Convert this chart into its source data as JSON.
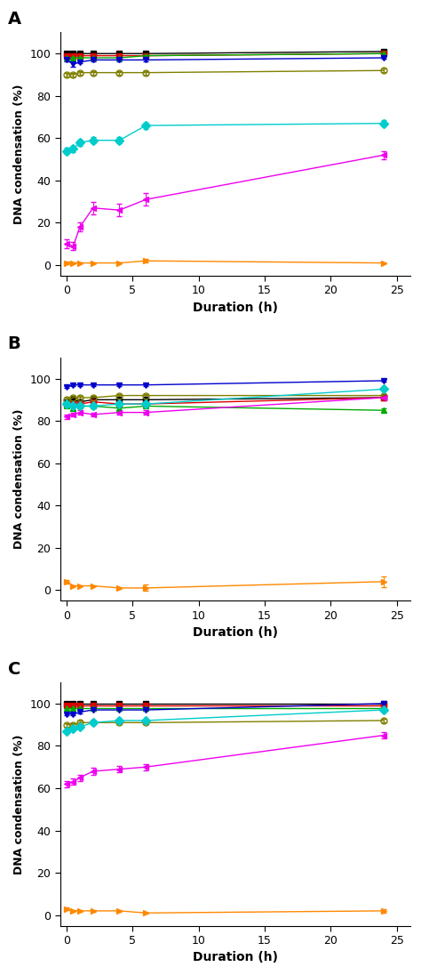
{
  "x_points": [
    0.0,
    0.5,
    1.0,
    2.0,
    4.0,
    6.0,
    24.0
  ],
  "panels": [
    "A",
    "B",
    "C"
  ],
  "series": [
    {
      "label": "black_sq",
      "color": "#000000",
      "marker": "s",
      "linestyle": "-",
      "A": [
        100,
        100,
        100,
        100,
        100,
        100,
        101
      ],
      "A_err": [
        0.3,
        0.3,
        0.3,
        0.3,
        0.3,
        0.3,
        0.3
      ],
      "B": [
        89,
        90,
        89,
        90,
        90,
        90,
        91
      ],
      "B_err": [
        0.8,
        0.8,
        0.8,
        0.8,
        0.8,
        0.8,
        0.8
      ],
      "C": [
        100,
        100,
        100,
        100,
        100,
        100,
        100
      ],
      "C_err": [
        0.3,
        0.3,
        0.3,
        0.3,
        0.3,
        0.3,
        0.3
      ]
    },
    {
      "label": "red_sq",
      "color": "#dd0000",
      "marker": "s",
      "linestyle": "-",
      "A": [
        99,
        99,
        99,
        99,
        99,
        99,
        100
      ],
      "A_err": [
        0.3,
        0.3,
        0.3,
        0.3,
        0.3,
        0.3,
        0.3
      ],
      "B": [
        88,
        88,
        88,
        89,
        88,
        88,
        91
      ],
      "B_err": [
        0.8,
        0.8,
        0.8,
        0.8,
        0.8,
        0.8,
        0.8
      ],
      "C": [
        99,
        99,
        99,
        99,
        99,
        99,
        99
      ],
      "C_err": [
        0.3,
        0.3,
        0.3,
        0.3,
        0.3,
        0.3,
        0.3
      ]
    },
    {
      "label": "green_tri_up",
      "color": "#00aa00",
      "marker": "^",
      "linestyle": "-",
      "A": [
        98,
        98,
        98,
        98,
        98,
        99,
        100
      ],
      "A_err": [
        0.3,
        0.3,
        0.3,
        0.3,
        0.3,
        0.3,
        0.3
      ],
      "B": [
        87,
        86,
        87,
        87,
        86,
        87,
        85
      ],
      "B_err": [
        0.8,
        0.8,
        0.8,
        0.8,
        0.8,
        0.8,
        0.8
      ],
      "C": [
        98,
        98,
        98,
        98,
        98,
        98,
        98
      ],
      "C_err": [
        0.3,
        0.3,
        0.3,
        0.3,
        0.3,
        0.3,
        0.3
      ]
    },
    {
      "label": "blue_tri_down",
      "color": "#0000cc",
      "marker": "v",
      "linestyle": "-",
      "A": [
        97,
        95,
        96,
        97,
        97,
        97,
        98
      ],
      "A_err": [
        0.5,
        1.0,
        0.5,
        0.5,
        0.5,
        0.5,
        0.5
      ],
      "B": [
        96,
        97,
        97,
        97,
        97,
        97,
        99
      ],
      "B_err": [
        0.5,
        0.5,
        0.5,
        0.5,
        0.5,
        0.5,
        0.5
      ],
      "C": [
        95,
        95,
        96,
        97,
        97,
        97,
        100
      ],
      "C_err": [
        0.5,
        0.5,
        0.5,
        0.5,
        0.5,
        0.5,
        0.5
      ]
    },
    {
      "label": "olive_circle",
      "color": "#808000",
      "marker": "o",
      "markerfacecolor": "none",
      "linestyle": "-",
      "A": [
        90,
        90,
        91,
        91,
        91,
        91,
        92
      ],
      "A_err": [
        0.8,
        0.8,
        0.8,
        0.8,
        0.8,
        0.8,
        0.8
      ],
      "B": [
        90,
        91,
        91,
        91,
        92,
        92,
        92
      ],
      "B_err": [
        0.8,
        0.8,
        0.8,
        0.8,
        0.8,
        0.8,
        0.8
      ],
      "C": [
        90,
        90,
        91,
        91,
        91,
        91,
        92
      ],
      "C_err": [
        0.8,
        0.8,
        0.8,
        0.8,
        0.8,
        0.8,
        0.8
      ]
    },
    {
      "label": "cyan_diamond",
      "color": "#00cccc",
      "marker": "D",
      "linestyle": "-",
      "A": [
        54,
        55,
        58,
        59,
        59,
        66,
        67
      ],
      "A_err": [
        1.5,
        1.5,
        1.5,
        1.5,
        1.5,
        1.5,
        1.5
      ],
      "B": [
        88,
        87,
        87,
        87,
        88,
        88,
        95
      ],
      "B_err": [
        0.8,
        0.8,
        0.8,
        0.8,
        0.8,
        0.8,
        0.8
      ],
      "C": [
        87,
        88,
        89,
        91,
        92,
        92,
        97
      ],
      "C_err": [
        0.8,
        0.8,
        0.8,
        0.8,
        0.8,
        0.8,
        0.8
      ]
    },
    {
      "label": "magenta_tri_left",
      "color": "#ee00ee",
      "marker": "<",
      "linestyle": "-",
      "A": [
        10,
        9,
        18,
        27,
        26,
        31,
        52
      ],
      "A_err": [
        2,
        2,
        2,
        3,
        3,
        3,
        2
      ],
      "B": [
        82,
        83,
        84,
        83,
        84,
        84,
        91
      ],
      "B_err": [
        1,
        1,
        1,
        1,
        1,
        1,
        1
      ],
      "C": [
        62,
        63,
        65,
        68,
        69,
        70,
        85
      ],
      "C_err": [
        1.5,
        1.5,
        1.5,
        1.5,
        1.5,
        1.5,
        1.5
      ]
    },
    {
      "label": "orange_tri_right",
      "color": "#ff8800",
      "marker": ">",
      "linestyle": "-",
      "A": [
        1,
        1,
        1,
        1,
        1,
        2,
        1
      ],
      "A_err": [
        0.8,
        0.3,
        0.3,
        0.3,
        0.3,
        0.8,
        0.3
      ],
      "B": [
        4,
        2,
        2,
        2,
        1,
        1,
        4
      ],
      "B_err": [
        0.8,
        0.3,
        0.3,
        0.3,
        0.3,
        1.5,
        2.5
      ],
      "C": [
        3,
        2,
        2,
        2,
        2,
        1,
        2
      ],
      "C_err": [
        0.8,
        0.3,
        0.3,
        0.3,
        0.3,
        0.3,
        0.8
      ]
    }
  ],
  "xlabel": "Duration (h)",
  "ylabel": "DNA condensation (%)",
  "xlim": [
    -0.5,
    26
  ],
  "ylim": [
    -5,
    110
  ],
  "yticks": [
    0,
    20,
    40,
    60,
    80,
    100
  ],
  "xticks": [
    0,
    5,
    10,
    15,
    20,
    25
  ],
  "xticklabels": [
    "0",
    "5",
    "10",
    "15",
    "20",
    "25"
  ],
  "panel_labels": [
    "A",
    "B",
    "C"
  ],
  "figsize": [
    4.74,
    10.96
  ],
  "dpi": 100
}
